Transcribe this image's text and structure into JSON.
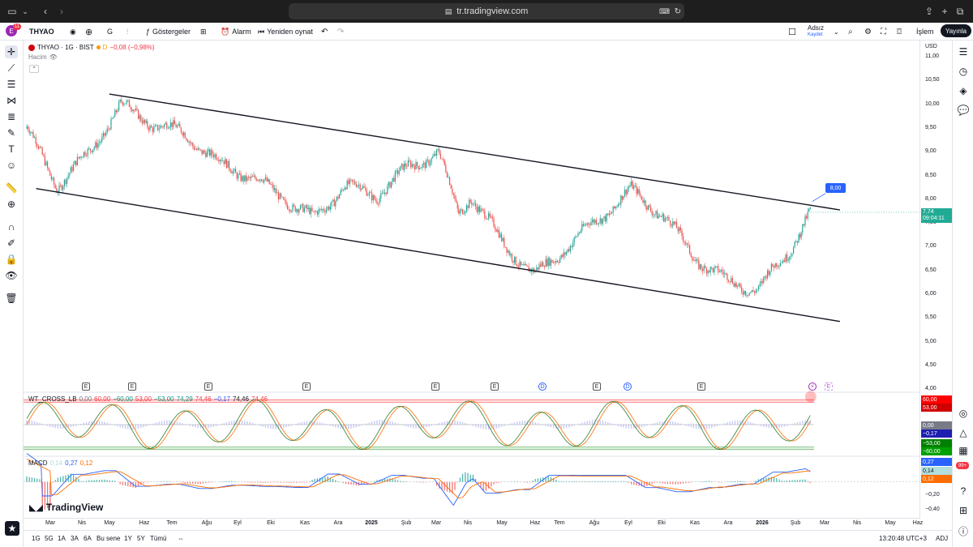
{
  "browser": {
    "url": "tr.tradingview.com",
    "icons": [
      "sidebar-icon",
      "chevron-down-icon",
      "back-icon",
      "forward-icon",
      "share-icon",
      "new-tab-icon",
      "tabs-icon"
    ]
  },
  "header": {
    "avatar_letter": "E",
    "notif_count": "11",
    "symbol": "THYAO",
    "interval": "G",
    "indicators_label": "Göstergeler",
    "alert_label": "Alarm",
    "replay_label": "Yeniden oynat",
    "layout_name": "Adsız",
    "layout_status": "Kaydet",
    "trade_label": "İşlem",
    "publish_label": "Yayınla"
  },
  "legend": {
    "title": "THYAO · 1G · BIST",
    "d_label": "D",
    "change": "−0,08 (−0,98%)",
    "volume_label": "Hacim"
  },
  "wt_legend": {
    "name": "WT_CROSS_LB",
    "values": [
      "0,00",
      "60,00",
      "−60,00",
      "53,00",
      "−53,00",
      "74,29",
      "74,46",
      "−0,17",
      "74,46",
      "74,46"
    ]
  },
  "macd_legend": {
    "name": "MACD",
    "values": [
      "0,14",
      "0,27",
      "0,12"
    ]
  },
  "price_scale": {
    "currency": "USD",
    "ticks": [
      "11,00",
      "10,50",
      "10,00",
      "9,50",
      "9,00",
      "8,50",
      "8,00",
      "7,50",
      "7,00",
      "6,50",
      "6,00",
      "5,50",
      "5,00",
      "4,50",
      "4,00"
    ],
    "last_price": "7,74",
    "countdown": "09:04:11",
    "callout": "8,00"
  },
  "wt_scale": {
    "tags": [
      "60,00",
      "53,00",
      "0,00",
      "−0,17",
      "−53,00",
      "−60,00"
    ]
  },
  "macd_scale": {
    "tags": [
      "0,27",
      "0,14",
      "0,12"
    ],
    "ticks": [
      "−0,20",
      "−0,40"
    ]
  },
  "time_axis": {
    "labels": [
      "Mar",
      "Nis",
      "May",
      "Haz",
      "Tem",
      "Ağu",
      "Eyl",
      "Eki",
      "Kas",
      "Ara",
      "2025",
      "Şub",
      "Mar",
      "Nis",
      "May",
      "Haz",
      "Tem",
      "Ağu",
      "Eyl",
      "Eki",
      "Kas",
      "Ara",
      "2026",
      "Şub",
      "Mar",
      "Nis",
      "May",
      "Haz"
    ]
  },
  "events": {
    "earnings_letter": "E",
    "dividend_letter": "D"
  },
  "bottom_bar": {
    "ranges": [
      "1G",
      "5G",
      "1A",
      "3A",
      "6A",
      "Bu sene",
      "1Y",
      "5Y",
      "Tümü"
    ],
    "clock": "13:20:48 UTC+3",
    "adj": "ADJ"
  },
  "brand": "TradingView",
  "right_badge": "99+",
  "colors": {
    "up": "#26a69a",
    "down": "#ef5350",
    "accent": "#2962ff",
    "last_price": "#22ab94",
    "wt_red": "#ff0000",
    "wt_green": "#008000"
  },
  "chart_data": {
    "type": "candlestick",
    "symbol": "THYAO",
    "interval": "1G",
    "exchange": "BIST",
    "currency": "USD",
    "ylim": [
      4.0,
      11.0
    ],
    "price_path": [
      {
        "date": "2024-02",
        "price": 9.5
      },
      {
        "date": "2024-03",
        "price": 8.3
      },
      {
        "date": "2024-04",
        "price": 9.0
      },
      {
        "date": "2024-05",
        "price": 10.0
      },
      {
        "date": "2024-06",
        "price": 9.6
      },
      {
        "date": "2024-07",
        "price": 9.4
      },
      {
        "date": "2024-08",
        "price": 8.8
      },
      {
        "date": "2024-09",
        "price": 8.5
      },
      {
        "date": "2024-10",
        "price": 8.1
      },
      {
        "date": "2024-11",
        "price": 7.6
      },
      {
        "date": "2024-12",
        "price": 8.3
      },
      {
        "date": "2025-01",
        "price": 8.1
      },
      {
        "date": "2025-02",
        "price": 8.7
      },
      {
        "date": "2025-03",
        "price": 9.0
      },
      {
        "date": "2025-03-20",
        "price": 7.7
      },
      {
        "date": "2025-04",
        "price": 8.1
      },
      {
        "date": "2025-05",
        "price": 7.1
      },
      {
        "date": "2025-06",
        "price": 6.4
      },
      {
        "date": "2025-07",
        "price": 7.0
      },
      {
        "date": "2025-08",
        "price": 7.6
      },
      {
        "date": "2025-09",
        "price": 8.2
      },
      {
        "date": "2025-10",
        "price": 7.7
      },
      {
        "date": "2025-11",
        "price": 6.8
      },
      {
        "date": "2025-12",
        "price": 6.3
      },
      {
        "date": "2026-01",
        "price": 6.1
      },
      {
        "date": "2026-02",
        "price": 7.0
      },
      {
        "date": "2026-02-20",
        "price": 7.74
      }
    ],
    "channel": {
      "upper": {
        "start": {
          "date": "2024-04-20",
          "price": 10.23
        },
        "end": {
          "date": "2026-03-20",
          "price": 7.79
        }
      },
      "lower": {
        "start": {
          "date": "2024-02-10",
          "price": 8.24
        },
        "end": {
          "date": "2026-03-20",
          "price": 5.44
        }
      }
    },
    "last_price": 7.74,
    "callout_price": 8.0,
    "wt_cross": {
      "levels": [
        60,
        53,
        0,
        -53,
        -60
      ],
      "wt1": 74.46,
      "wt2": 74.29,
      "diff": -0.17
    },
    "macd": {
      "histogram": 0.14,
      "macd": 0.27,
      "signal": 0.12
    }
  }
}
